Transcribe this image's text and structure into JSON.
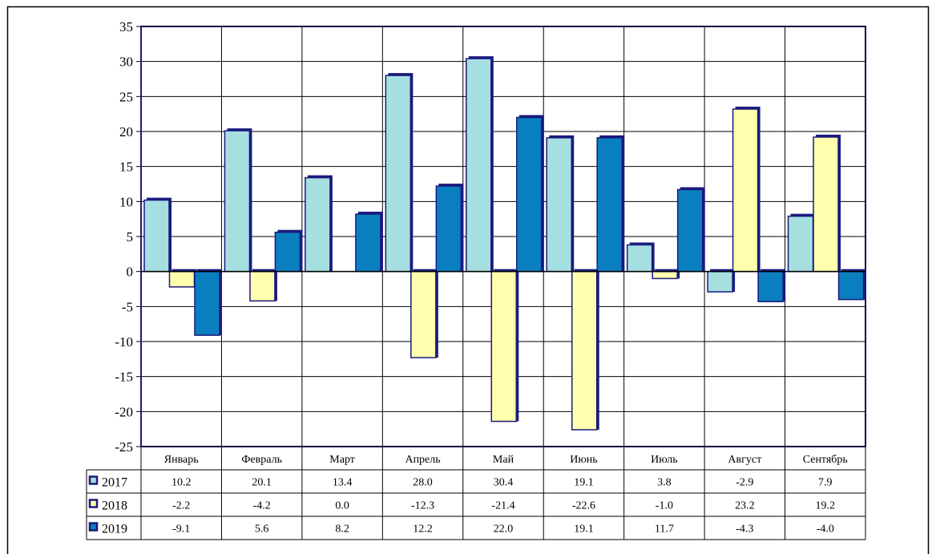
{
  "chart_data": {
    "type": "bar",
    "categories": [
      "Январь",
      "Февраль",
      "Март",
      "Апрель",
      "Май",
      "Июнь",
      "Июль",
      "Август",
      "Сентябрь"
    ],
    "series": [
      {
        "name": "2017",
        "values": [
          10.2,
          20.1,
          13.4,
          28.0,
          30.4,
          19.1,
          3.8,
          -2.9,
          7.9
        ],
        "value_labels": [
          "10.2",
          "20.1",
          "13.4",
          "28.0",
          "30.4",
          "19.1",
          "3.8",
          "-2.9",
          "7.9"
        ],
        "color": "#A6DFE0"
      },
      {
        "name": "2018",
        "values": [
          -2.2,
          -4.2,
          0.0,
          -12.3,
          -21.4,
          -22.6,
          -1.0,
          23.2,
          19.2
        ],
        "value_labels": [
          "-2.2",
          "-4.2",
          "0.0",
          "-12.3",
          "-21.4",
          "-22.6",
          "-1.0",
          "23.2",
          "19.2"
        ],
        "color": "#FFFFAD"
      },
      {
        "name": "2019",
        "values": [
          -9.1,
          5.6,
          8.2,
          12.2,
          22.0,
          19.1,
          11.7,
          -4.3,
          -4.0
        ],
        "value_labels": [
          "-9.1",
          "5.6",
          "8.2",
          "12.2",
          "22.0",
          "19.1",
          "11.7",
          "-4.3",
          "-4.0"
        ],
        "color": "#0A7FC0"
      }
    ],
    "ylim": [
      -25,
      35
    ],
    "yticks": [
      35,
      30,
      25,
      20,
      15,
      10,
      5,
      0,
      -5,
      -10,
      -15,
      -20,
      -25
    ],
    "grid": true,
    "legend": "data-table",
    "bar_outline_color": "#1A1A7E",
    "title": "",
    "xlabel": "",
    "ylabel": ""
  }
}
